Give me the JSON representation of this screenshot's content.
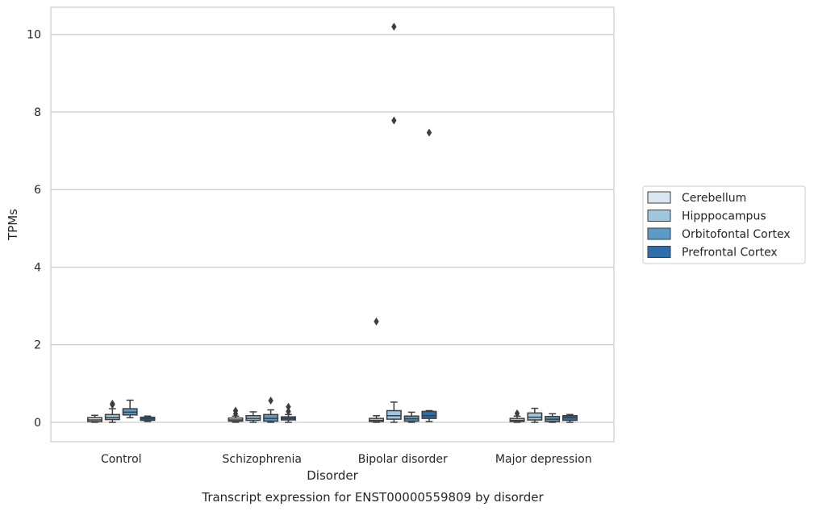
{
  "chart_data": {
    "type": "box",
    "title": "",
    "caption": "Transcript expression for ENST00000559809 by disorder",
    "xlabel": "Disorder",
    "ylabel": "TPMs",
    "ylim": [
      -0.5,
      10.7
    ],
    "yticks": [
      0,
      2,
      4,
      6,
      8,
      10
    ],
    "grid": true,
    "legend_placement": "right",
    "categories": [
      "Control",
      "Schizophrenia",
      "Bipolar disorder",
      "Major depression"
    ],
    "series": [
      {
        "name": "Cerebellum",
        "color": "#d9e6f2",
        "boxes": [
          {
            "whislo": 0.0,
            "q1": 0.02,
            "med": 0.06,
            "q3": 0.12,
            "whishi": 0.18,
            "fliers": []
          },
          {
            "whislo": 0.0,
            "q1": 0.03,
            "med": 0.06,
            "q3": 0.11,
            "whishi": 0.16,
            "fliers": [
              0.22,
              0.3
            ]
          },
          {
            "whislo": 0.0,
            "q1": 0.02,
            "med": 0.05,
            "q3": 0.1,
            "whishi": 0.17,
            "fliers": [
              2.6
            ]
          },
          {
            "whislo": 0.0,
            "q1": 0.02,
            "med": 0.05,
            "q3": 0.1,
            "whishi": 0.16,
            "fliers": [
              0.23
            ]
          }
        ]
      },
      {
        "name": "Hipppocampus",
        "color": "#9ec7e0",
        "boxes": [
          {
            "whislo": 0.0,
            "q1": 0.07,
            "med": 0.12,
            "q3": 0.2,
            "whishi": 0.35,
            "fliers": [
              0.45,
              0.48
            ]
          },
          {
            "whislo": 0.0,
            "q1": 0.05,
            "med": 0.1,
            "q3": 0.17,
            "whishi": 0.27,
            "fliers": []
          },
          {
            "whislo": 0.0,
            "q1": 0.08,
            "med": 0.17,
            "q3": 0.3,
            "whishi": 0.52,
            "fliers": [
              7.78,
              10.2
            ]
          },
          {
            "whislo": 0.0,
            "q1": 0.06,
            "med": 0.13,
            "q3": 0.24,
            "whishi": 0.36,
            "fliers": []
          }
        ]
      },
      {
        "name": "Orbitofontal Cortex",
        "color": "#5a9bc8",
        "boxes": [
          {
            "whislo": 0.12,
            "q1": 0.19,
            "med": 0.26,
            "q3": 0.35,
            "whishi": 0.57,
            "fliers": []
          },
          {
            "whislo": 0.0,
            "q1": 0.03,
            "med": 0.1,
            "q3": 0.2,
            "whishi": 0.32,
            "fliers": [
              0.56
            ]
          },
          {
            "whislo": 0.0,
            "q1": 0.03,
            "med": 0.09,
            "q3": 0.16,
            "whishi": 0.26,
            "fliers": []
          },
          {
            "whislo": 0.0,
            "q1": 0.02,
            "med": 0.08,
            "q3": 0.15,
            "whishi": 0.22,
            "fliers": []
          }
        ]
      },
      {
        "name": "Prefrontal Cortex",
        "color": "#2e6fab",
        "boxes": [
          {
            "whislo": 0.02,
            "q1": 0.05,
            "med": 0.09,
            "q3": 0.13,
            "whishi": 0.16,
            "fliers": []
          },
          {
            "whislo": 0.0,
            "q1": 0.06,
            "med": 0.1,
            "q3": 0.14,
            "whishi": 0.2,
            "fliers": [
              0.28,
              0.4
            ]
          },
          {
            "whislo": 0.02,
            "q1": 0.1,
            "med": 0.17,
            "q3": 0.28,
            "whishi": 0.3,
            "fliers": [
              7.47
            ]
          },
          {
            "whislo": 0.0,
            "q1": 0.05,
            "med": 0.12,
            "q3": 0.17,
            "whishi": 0.2,
            "fliers": []
          }
        ]
      }
    ]
  }
}
